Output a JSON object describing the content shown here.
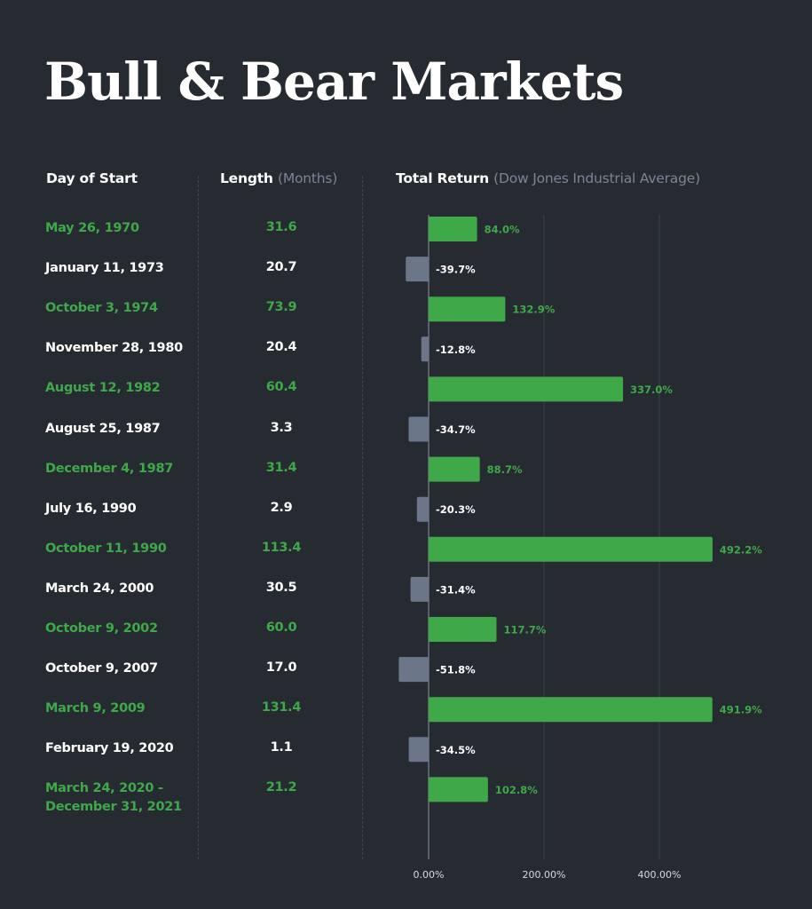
{
  "title": "Bull & Bear Markets",
  "columns": {
    "start": "Day of Start",
    "length": "Length",
    "length_unit": "(Months)",
    "return": "Total Return",
    "return_unit": "(Dow Jones Industrial Average)"
  },
  "colors": {
    "background": "#262a31",
    "bull": "#3fa94a",
    "bear": "#6b7689",
    "text": "#ffffff",
    "muted": "#7b8596"
  },
  "rows": [
    {
      "start": "May 26, 1970",
      "length": "31.6",
      "return": 84.0,
      "label": "84.0%",
      "kind": "bull"
    },
    {
      "start": "January 11, 1973",
      "length": "20.7",
      "return": -39.7,
      "label": "-39.7%",
      "kind": "bear"
    },
    {
      "start": "October 3, 1974",
      "length": "73.9",
      "return": 132.9,
      "label": "132.9%",
      "kind": "bull"
    },
    {
      "start": "November 28, 1980",
      "length": "20.4",
      "return": -12.8,
      "label": "-12.8%",
      "kind": "bear"
    },
    {
      "start": "August 12, 1982",
      "length": "60.4",
      "return": 337.0,
      "label": "337.0%",
      "kind": "bull"
    },
    {
      "start": "August 25, 1987",
      "length": "3.3",
      "return": -34.7,
      "label": "-34.7%",
      "kind": "bear"
    },
    {
      "start": "December 4, 1987",
      "length": "31.4",
      "return": 88.7,
      "label": "88.7%",
      "kind": "bull"
    },
    {
      "start": "July 16, 1990",
      "length": "2.9",
      "return": -20.3,
      "label": "-20.3%",
      "kind": "bear"
    },
    {
      "start": "October 11, 1990",
      "length": "113.4",
      "return": 492.2,
      "label": "492.2%",
      "kind": "bull"
    },
    {
      "start": "March 24, 2000",
      "length": "30.5",
      "return": -31.4,
      "label": "-31.4%",
      "kind": "bear"
    },
    {
      "start": "October 9, 2002",
      "length": "60.0",
      "return": 117.7,
      "label": "117.7%",
      "kind": "bull"
    },
    {
      "start": "October 9, 2007",
      "length": "17.0",
      "return": -51.8,
      "label": "-51.8%",
      "kind": "bear"
    },
    {
      "start": "March 9, 2009",
      "length": "131.4",
      "return": 491.9,
      "label": "491.9%",
      "kind": "bull"
    },
    {
      "start": "February 19, 2020",
      "length": "1.1",
      "return": -34.5,
      "label": "-34.5%",
      "kind": "bear"
    },
    {
      "start": "March 24, 2020 -\nDecember 31, 2021",
      "length": "21.2",
      "return": 102.8,
      "label": "102.8%",
      "kind": "bull"
    }
  ],
  "chart_data": {
    "type": "bar",
    "orientation": "horizontal",
    "title": "",
    "xlabel": "",
    "ylabel": "",
    "categories": [
      "May 26, 1970",
      "January 11, 1973",
      "October 3, 1974",
      "November 28, 1980",
      "August 12, 1982",
      "August 25, 1987",
      "December 4, 1987",
      "July 16, 1990",
      "October 11, 1990",
      "March 24, 2000",
      "October 9, 2002",
      "October 9, 2007",
      "March 9, 2009",
      "February 19, 2020",
      "March 24, 2020 - December 31, 2021"
    ],
    "values": [
      84.0,
      -39.7,
      132.9,
      -12.8,
      337.0,
      -34.7,
      88.7,
      -20.3,
      492.2,
      -31.4,
      117.7,
      -51.8,
      491.9,
      -34.5,
      102.8
    ],
    "xlim": [
      -55,
      500
    ],
    "x_ticks": [
      0,
      200,
      400
    ],
    "x_tick_labels": [
      "0.00%",
      "200.00%",
      "400.00%"
    ],
    "grid": true,
    "legend": "none"
  }
}
